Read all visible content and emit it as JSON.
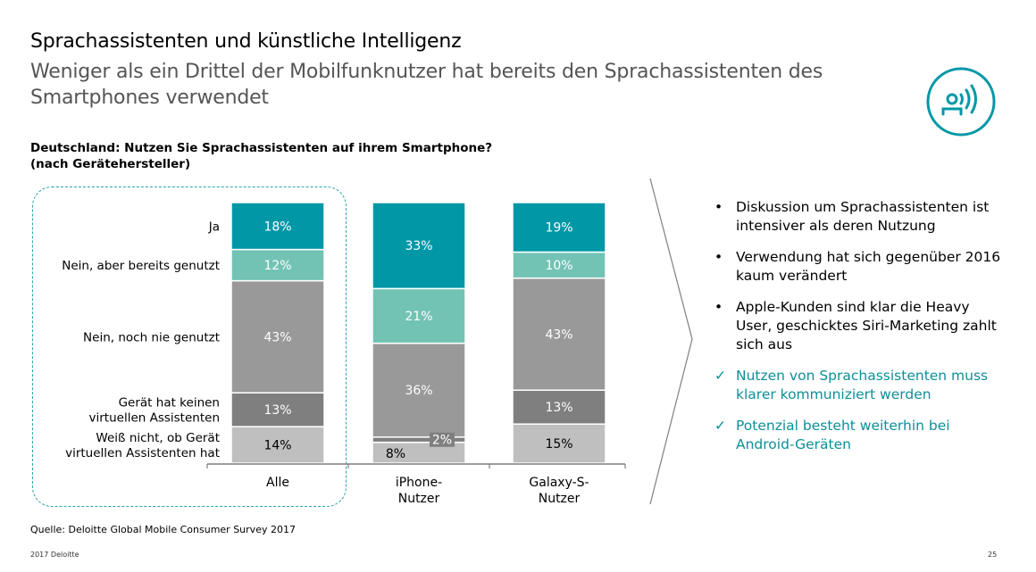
{
  "header": {
    "title": "Sprachassistenten und künstliche Intelligenz",
    "subtitle": "Weniger als ein Drittel der Mobilfunknutzer hat bereits den Sprachassistenten des Smartphones verwendet",
    "question_line1": "Deutschland: Nutzen Sie Sprachassistenten auf ihrem Smartphone?",
    "question_line2": "(nach Gerätehersteller)",
    "icon": "voice-assistant-icon"
  },
  "chart_data": {
    "type": "bar",
    "stacked": true,
    "orientation": "vertical",
    "categories": [
      "Alle",
      "iPhone-Nutzer",
      "Galaxy-S-Nutzer"
    ],
    "category_labels": [
      [
        "Alle"
      ],
      [
        "iPhone-",
        "Nutzer"
      ],
      [
        "Galaxy-S-",
        "Nutzer"
      ]
    ],
    "unit": "%",
    "series_order_bottom_to_top": [
      "Weiß nicht, ob Gerät virtuellen Assistenten hat",
      "Gerät hat keinen virtuellen Assistenten",
      "Nein, noch nie genutzt",
      "Nein, aber bereits genutzt",
      "Ja"
    ],
    "series": [
      {
        "name": "Ja",
        "label_lines": [
          "Ja"
        ],
        "color": "#0097a7",
        "text_color": "#ffffff",
        "values": [
          18,
          33,
          19
        ]
      },
      {
        "name": "Nein, aber bereits genutzt",
        "label_lines": [
          "Nein, aber bereits genutzt"
        ],
        "color": "#72c3b4",
        "text_color": "#ffffff",
        "values": [
          12,
          21,
          10
        ]
      },
      {
        "name": "Nein, noch nie genutzt",
        "label_lines": [
          "Nein, noch nie genutzt"
        ],
        "color": "#999999",
        "text_color": "#ffffff",
        "values": [
          43,
          36,
          43
        ]
      },
      {
        "name": "Gerät hat keinen virtuellen Assistenten",
        "label_lines": [
          "Gerät hat keinen",
          "virtuellen Assistenten"
        ],
        "color": "#7f7f7f",
        "text_color": "#ffffff",
        "values": [
          13,
          2,
          13
        ]
      },
      {
        "name": "Weiß nicht, ob Gerät virtuellen Assistenten hat",
        "label_lines": [
          "Weiß nicht, ob Gerät",
          "virtuellen Assistenten hat"
        ],
        "color": "#bfbfbf",
        "text_color": "#000000",
        "values": [
          14,
          8,
          15
        ]
      }
    ],
    "ylim": [
      0,
      100
    ],
    "grid": false,
    "legend": "left",
    "highlighted_category": "Alle"
  },
  "bullets": [
    {
      "type": "bullet",
      "marker": "•",
      "text": "Diskussion um Sprachassistenten ist intensiver als deren Nutzung"
    },
    {
      "type": "bullet",
      "marker": "•",
      "text": "Verwendung hat sich gegenüber 2016 kaum verändert"
    },
    {
      "type": "bullet",
      "marker": "•",
      "text": "Apple-Kunden sind klar die Heavy User, geschicktes Siri-Marketing zahlt sich aus"
    },
    {
      "type": "check",
      "marker": "✓",
      "text": "Nutzen von Sprachassistenten muss klarer kommuniziert werden"
    },
    {
      "type": "check",
      "marker": "✓",
      "text": "Potenzial besteht weiterhin bei Android-Geräten"
    }
  ],
  "footer": {
    "source": "Quelle: Deloitte Global Mobile Consumer Survey 2017",
    "copyright": "2017 Deloitte",
    "page_number": "25"
  },
  "colors": {
    "accent": "#0097a7",
    "accent_text": "#0e8f98"
  }
}
